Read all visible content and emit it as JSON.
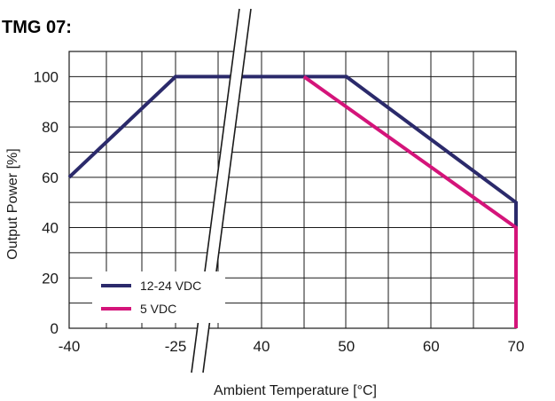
{
  "chart_data": {
    "type": "line",
    "title": "TMG 07:",
    "xlabel": "Ambient Temperature [°C]",
    "ylabel": "Output Power [%]",
    "x_ticks": [
      "-40",
      "-25",
      "40",
      "50",
      "60",
      "70"
    ],
    "x_tick_values": [
      -40,
      -25,
      40,
      50,
      60,
      70
    ],
    "x_axis_break": {
      "between": [
        -25,
        40
      ]
    },
    "y_ticks": [
      "0",
      "20",
      "40",
      "60",
      "80",
      "100"
    ],
    "ylim": [
      0,
      110
    ],
    "grid": true,
    "legend_position": "bottom-left",
    "series": [
      {
        "name": "12-24 VDC",
        "color": "#2b2a6b",
        "x": [
          -40,
          -25,
          50,
          70,
          70
        ],
        "y": [
          60,
          100,
          100,
          50,
          0
        ]
      },
      {
        "name": "5 VDC",
        "color": "#d4147a",
        "x": [
          45,
          70,
          70
        ],
        "y": [
          100,
          40,
          0
        ]
      }
    ]
  }
}
